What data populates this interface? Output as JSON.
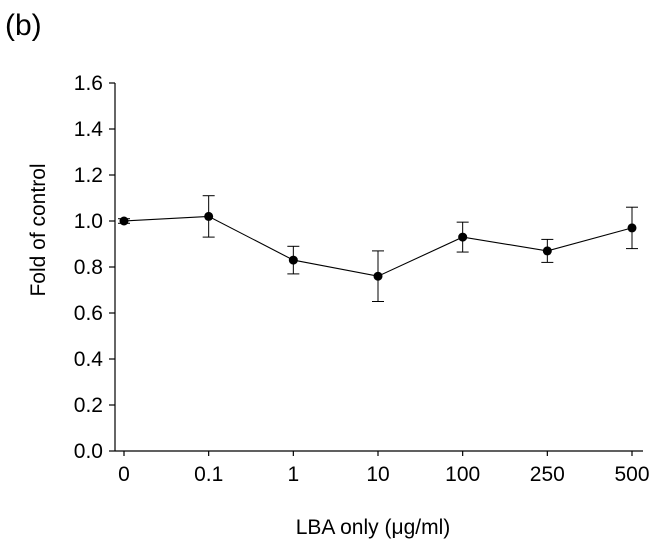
{
  "panel_label": "(b)",
  "chart_data": {
    "type": "line",
    "title": "",
    "xlabel": "LBA only (μg/ml)",
    "ylabel": "Fold of control",
    "categories": [
      "0",
      "0.1",
      "1",
      "10",
      "100",
      "250",
      "500"
    ],
    "ylim": [
      0.0,
      1.6
    ],
    "yticks": [
      "0.0",
      "0.2",
      "0.4",
      "0.6",
      "0.8",
      "1.0",
      "1.2",
      "1.4",
      "1.6"
    ],
    "grid": false,
    "legend": "none",
    "series": [
      {
        "values": [
          1.0,
          1.02,
          0.83,
          0.76,
          0.93,
          0.87,
          0.97
        ],
        "errors": [
          0.01,
          0.09,
          0.06,
          0.11,
          0.065,
          0.05,
          0.09
        ]
      }
    ],
    "colors": {
      "line": "#000000",
      "marker": "#000000"
    }
  }
}
